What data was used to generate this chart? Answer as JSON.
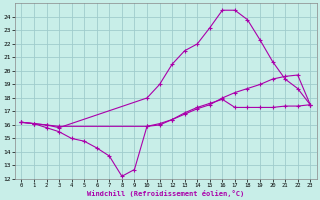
{
  "xlabel": "Windchill (Refroidissement éolien,°C)",
  "bg_color": "#c8eee8",
  "grid_color": "#a0cccc",
  "line_color": "#aa00aa",
  "xlim": [
    -0.5,
    23.5
  ],
  "ylim": [
    12,
    25
  ],
  "yticks": [
    12,
    13,
    14,
    15,
    16,
    17,
    18,
    19,
    20,
    21,
    22,
    23,
    24
  ],
  "xticks": [
    0,
    1,
    2,
    3,
    4,
    5,
    6,
    7,
    8,
    9,
    10,
    11,
    12,
    13,
    14,
    15,
    16,
    17,
    18,
    19,
    20,
    21,
    22,
    23
  ],
  "lines": [
    {
      "x": [
        0,
        1,
        2,
        3,
        4,
        5,
        6,
        7,
        8,
        9,
        10,
        11,
        12,
        13,
        14,
        15,
        16,
        17,
        18,
        19,
        20,
        21,
        22,
        23
      ],
      "y": [
        16.2,
        16.1,
        15.8,
        15.5,
        15.0,
        14.8,
        14.3,
        13.7,
        12.2,
        12.7,
        15.9,
        16.0,
        16.4,
        16.9,
        17.3,
        17.6,
        17.9,
        17.3,
        17.3,
        17.3,
        17.3,
        17.4,
        17.4,
        17.5
      ]
    },
    {
      "x": [
        0,
        1,
        2,
        3,
        10,
        11,
        12,
        13,
        14,
        15,
        16,
        17,
        18,
        19,
        20,
        21,
        22,
        23
      ],
      "y": [
        16.2,
        16.1,
        16.0,
        15.8,
        18.0,
        19.0,
        20.5,
        21.5,
        22.0,
        23.2,
        24.5,
        24.5,
        23.8,
        22.3,
        20.7,
        19.4,
        18.7,
        17.5
      ]
    },
    {
      "x": [
        0,
        1,
        2,
        3,
        10,
        11,
        12,
        13,
        14,
        15,
        16,
        17,
        18,
        19,
        20,
        21,
        22,
        23
      ],
      "y": [
        16.2,
        16.1,
        16.0,
        15.9,
        15.9,
        16.1,
        16.4,
        16.8,
        17.2,
        17.5,
        18.0,
        18.4,
        18.7,
        19.0,
        19.4,
        19.6,
        19.7,
        17.5
      ]
    }
  ]
}
